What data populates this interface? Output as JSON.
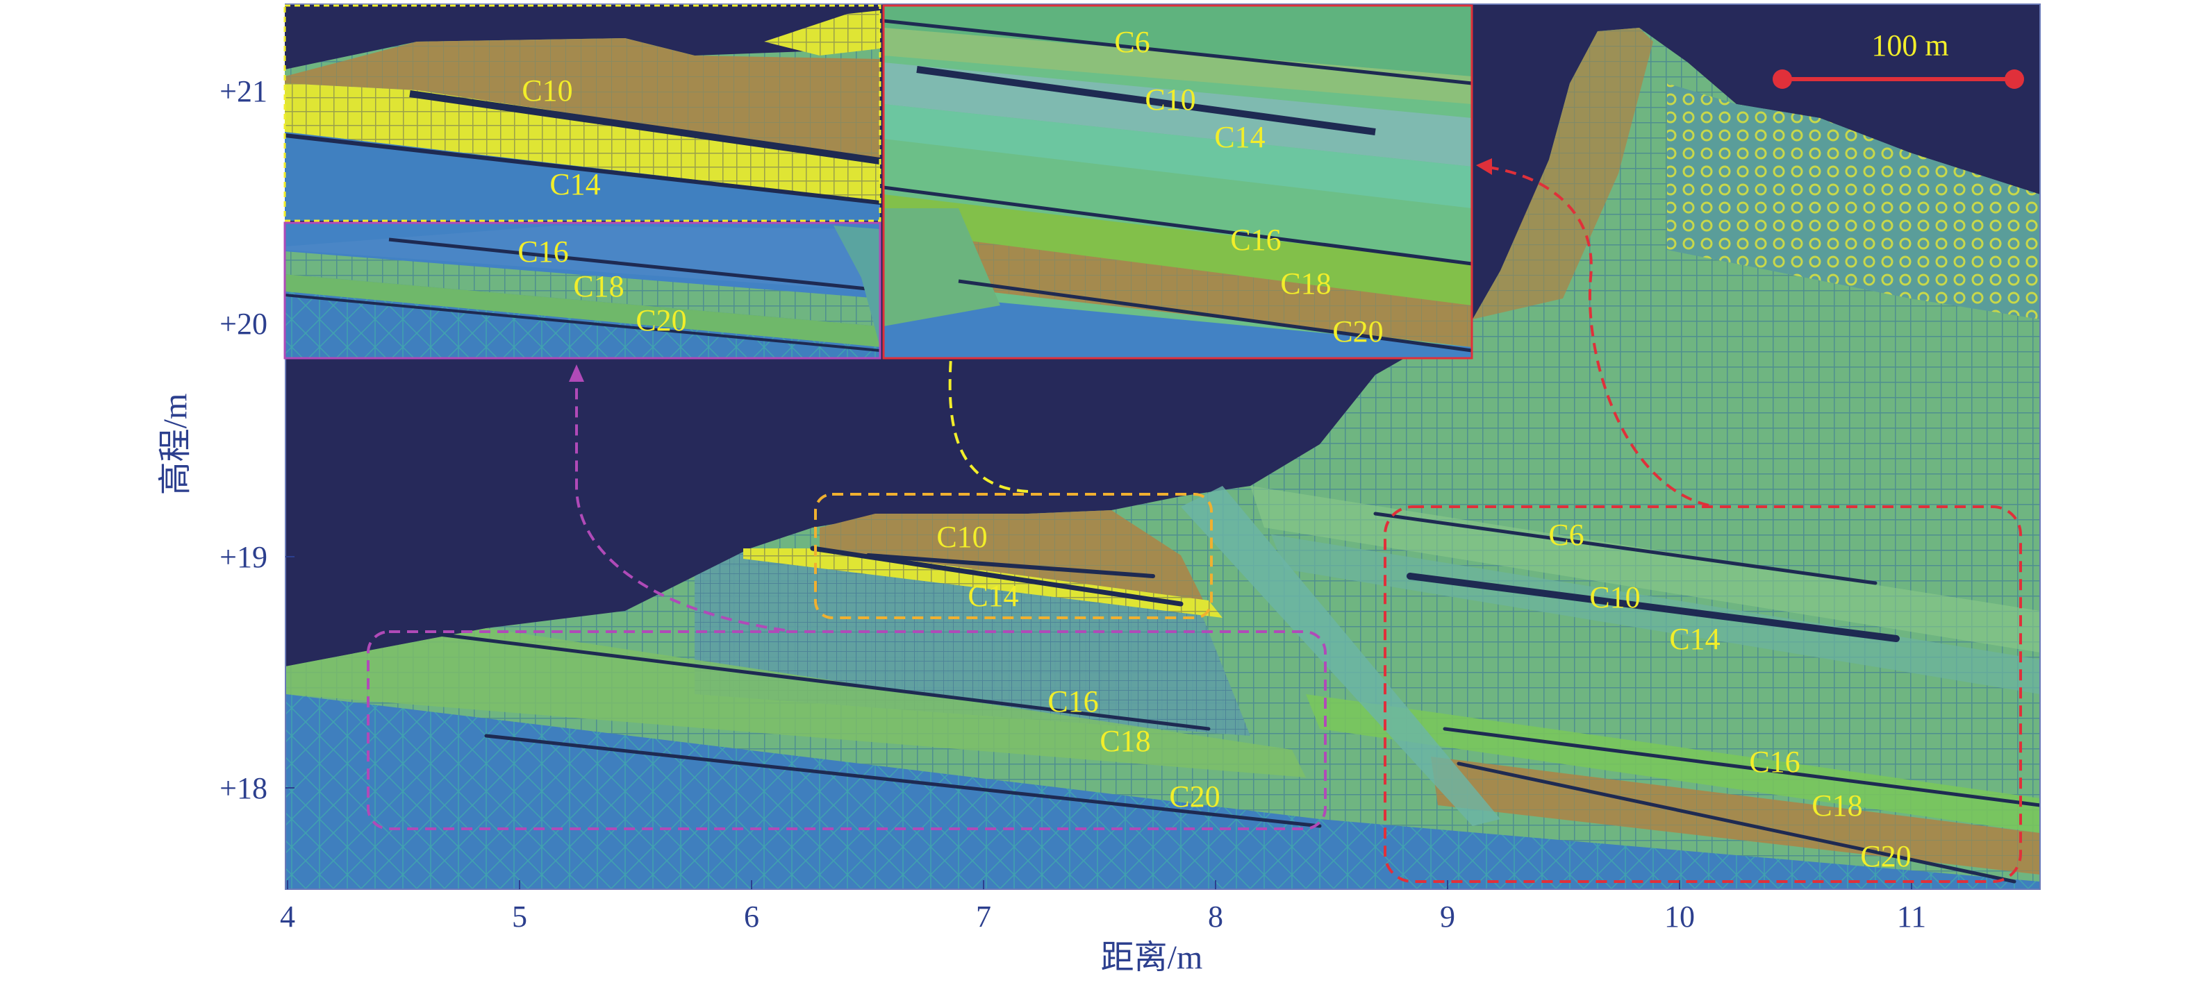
{
  "axes": {
    "xlabel": "距离/m",
    "ylabel": "高程/m",
    "xticks": [
      "4",
      "5",
      "6",
      "7",
      "8",
      "9",
      "10",
      "11"
    ],
    "yticks": [
      "+21",
      "+20",
      "+19",
      "+18"
    ]
  },
  "scale_bar": {
    "label": "100 m"
  },
  "main_labels": {
    "left": {
      "c10": "C10",
      "c14": "C14",
      "c16": "C16",
      "c18": "C18",
      "c20": "C20"
    },
    "right": {
      "c6": "C6",
      "c10": "C10",
      "c14": "C14",
      "c16": "C16",
      "c18": "C18",
      "c20": "C20"
    }
  },
  "inset_yellow": {
    "c10": "C10",
    "c14": "C14"
  },
  "inset_purple": {
    "c16": "C16",
    "c18": "C18",
    "c20": "C20"
  },
  "inset_red": {
    "c6": "C6",
    "c10": "C10",
    "c14": "C14",
    "c16": "C16",
    "c18": "C18",
    "c20": "C20"
  },
  "colors": {
    "background": "#26295a",
    "bedrock": "#4a86c8",
    "green_mesh": "#74bd82",
    "brown": "#a98c4c",
    "yellow_layer": "#e8ec2a",
    "coal_seam": "#1e2a52",
    "yellow_box": "#f0b030",
    "red_box": "#e0303a",
    "purple_box": "#b04ab8",
    "label": "#f2ee2a",
    "axis_text": "#2c3f8e"
  }
}
